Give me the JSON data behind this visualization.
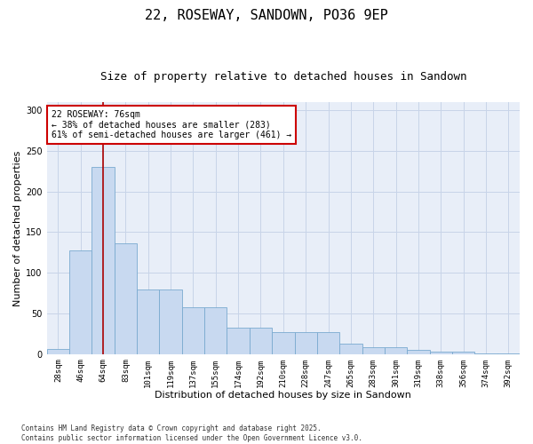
{
  "title": "22, ROSEWAY, SANDOWN, PO36 9EP",
  "subtitle": "Size of property relative to detached houses in Sandown",
  "xlabel": "Distribution of detached houses by size in Sandown",
  "ylabel": "Number of detached properties",
  "categories": [
    "28sqm",
    "46sqm",
    "64sqm",
    "83sqm",
    "101sqm",
    "119sqm",
    "137sqm",
    "155sqm",
    "174sqm",
    "192sqm",
    "210sqm",
    "228sqm",
    "247sqm",
    "265sqm",
    "283sqm",
    "301sqm",
    "319sqm",
    "338sqm",
    "356sqm",
    "374sqm",
    "392sqm"
  ],
  "values": [
    6,
    128,
    230,
    136,
    80,
    80,
    58,
    58,
    32,
    32,
    27,
    27,
    27,
    13,
    8,
    8,
    5,
    3,
    3,
    1,
    1
  ],
  "bar_color": "#c8d9f0",
  "bar_edge_color": "#7aaad0",
  "vline_x": 2.0,
  "vline_color": "#aa0000",
  "annotation_text": "22 ROSEWAY: 76sqm\n← 38% of detached houses are smaller (283)\n61% of semi-detached houses are larger (461) →",
  "annotation_box_color": "#ffffff",
  "annotation_box_edge": "#cc0000",
  "grid_color": "#c8d4e8",
  "bg_color": "#e8eef8",
  "footer": "Contains HM Land Registry data © Crown copyright and database right 2025.\nContains public sector information licensed under the Open Government Licence v3.0.",
  "ylim": [
    0,
    310
  ],
  "title_fontsize": 11,
  "subtitle_fontsize": 9,
  "tick_fontsize": 6.5,
  "ylabel_fontsize": 8,
  "xlabel_fontsize": 8,
  "ann_fontsize": 7,
  "footer_fontsize": 5.5
}
